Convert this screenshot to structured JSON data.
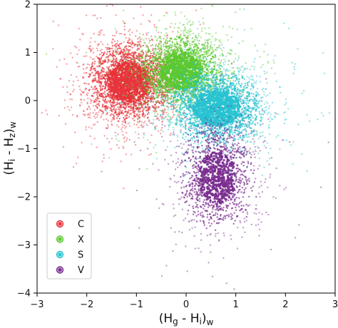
{
  "chart_data": {
    "type": "scatter",
    "title": "",
    "xlabel": {
      "open": "(H",
      "s1": "g",
      "mid": " - H",
      "s2": "i",
      "close": ")",
      "sub": "w"
    },
    "ylabel": {
      "open": "(H",
      "s1": "i",
      "mid": " - H",
      "s2": "z",
      "close": ")",
      "sub": "w"
    },
    "xlim": [
      -3,
      3
    ],
    "ylim": [
      -4,
      2
    ],
    "xticks": [
      "−3",
      "−2",
      "−1",
      "0",
      "1",
      "2",
      "3"
    ],
    "yticks": [
      "2",
      "1",
      "0",
      "−1",
      "−2",
      "−3",
      "−4"
    ],
    "grid": false,
    "legend_position": "lower-left",
    "series": [
      {
        "name": "C",
        "color": "#e8333b",
        "center": [
          -1.15,
          0.38
        ],
        "spread": [
          0.42,
          0.42
        ],
        "count": 2600
      },
      {
        "name": "X",
        "color": "#5cc92e",
        "center": [
          -0.1,
          0.62
        ],
        "spread": [
          0.42,
          0.38
        ],
        "count": 2200
      },
      {
        "name": "S",
        "color": "#28c2d2",
        "center": [
          0.62,
          -0.15
        ],
        "spread": [
          0.48,
          0.38
        ],
        "count": 2400
      },
      {
        "name": "V",
        "color": "#7a2c8f",
        "center": [
          0.62,
          -1.6
        ],
        "spread": [
          0.38,
          0.55
        ],
        "count": 1400
      }
    ]
  }
}
